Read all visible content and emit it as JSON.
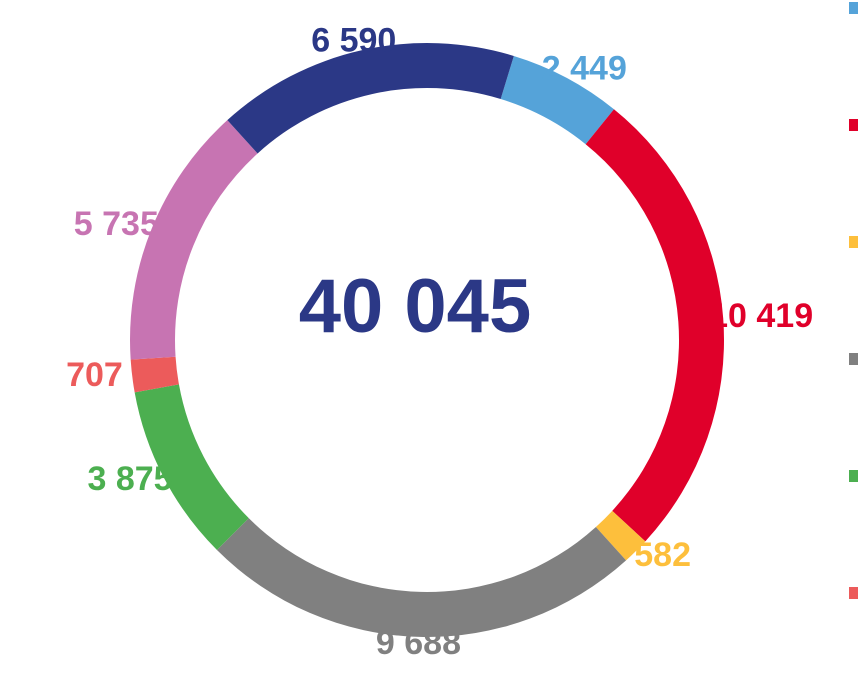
{
  "chart_data": {
    "type": "donut",
    "center_label": "40 045",
    "categories": [
      null,
      null,
      null,
      null,
      null,
      null,
      null,
      null
    ],
    "values": [
      2449,
      10419,
      582,
      9688,
      3875,
      707,
      5735,
      6590
    ],
    "value_labels": [
      "2 449",
      "10 419",
      "582",
      "9 688",
      "3 875",
      "707",
      "5 735",
      "6 590"
    ],
    "colors": [
      "#55a3d9",
      "#e0002a",
      "#fdbf3c",
      "#808080",
      "#4caf50",
      "#ec5b5b",
      "#c774b2",
      "#2b3886"
    ]
  }
}
